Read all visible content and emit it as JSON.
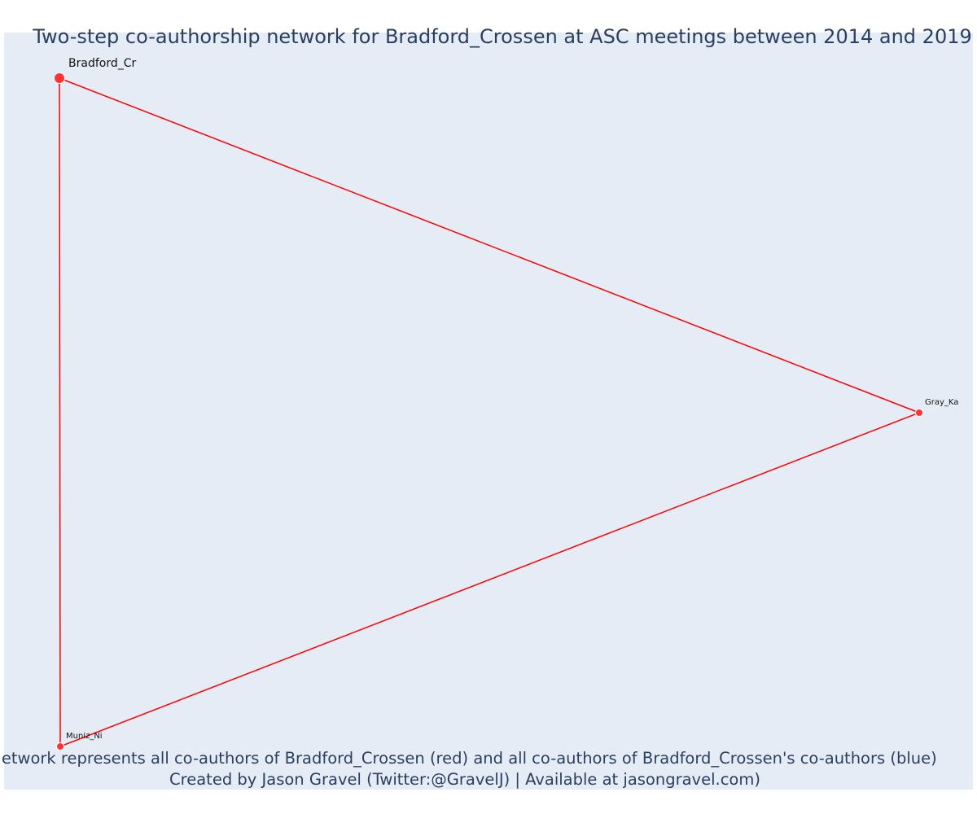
{
  "title": "Two-step co-authorship network for Bradford_Crossen at ASC meetings between 2014 and 2019",
  "caption": {
    "line1": "Network represents all co-authors of Bradford_Crossen (red) and all co-authors of Bradford_Crossen's co-authors (blue)",
    "line2": "Created by Jason Gravel (Twitter:@GravelJ) | Available at jasongravel.com)"
  },
  "colors": {
    "plot_background": "#e5ecf6",
    "edge": "#ff0000",
    "node": "#ff3333",
    "node_outline": "#ffffff",
    "text": "#2a3f5f"
  },
  "network": {
    "nodes": [
      {
        "id": "bradford",
        "label": "Bradford_Cr",
        "group": "ego"
      },
      {
        "id": "gray",
        "label": "Gray_Ka",
        "group": "co-author"
      },
      {
        "id": "muniz",
        "label": "Muniz_Ni",
        "group": "co-author"
      }
    ],
    "edges": [
      {
        "source": "bradford",
        "target": "gray"
      },
      {
        "source": "gray",
        "target": "muniz"
      },
      {
        "source": "bradford",
        "target": "muniz"
      }
    ]
  }
}
